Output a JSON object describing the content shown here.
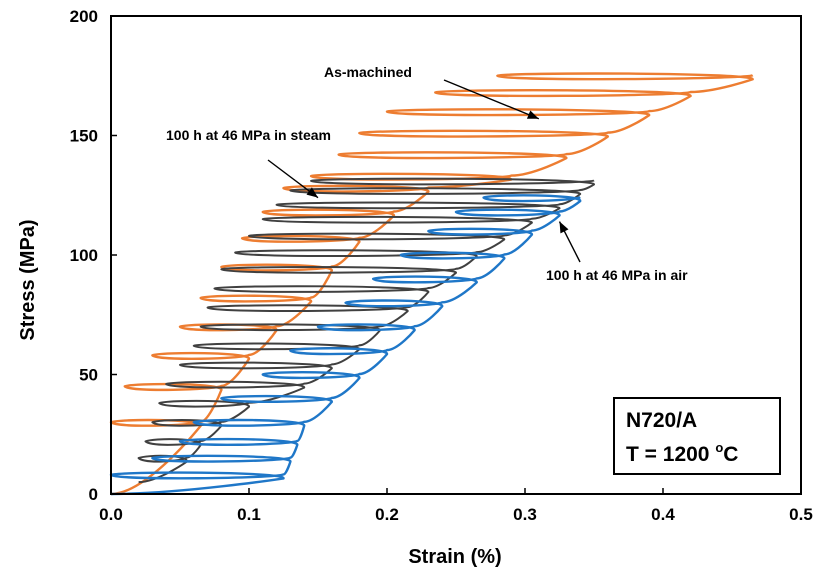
{
  "chart_data": {
    "type": "line",
    "xlabel": "Strain (%)",
    "ylabel": "Stress (MPa)",
    "xlim": [
      0.0,
      0.5
    ],
    "ylim": [
      0,
      200
    ],
    "xticks": [
      "0.0",
      "0.1",
      "0.2",
      "0.3",
      "0.4",
      "0.5"
    ],
    "yticks": [
      "0",
      "50",
      "100",
      "150",
      "200"
    ],
    "grid": false,
    "legend": "none",
    "series": [
      {
        "name": "As-machined",
        "color": "#ED7D31",
        "start": [
          0.0,
          0
        ],
        "cycles": [
          [
            0.0,
            0.065,
            30
          ],
          [
            0.01,
            0.08,
            45
          ],
          [
            0.03,
            0.1,
            58
          ],
          [
            0.05,
            0.12,
            70
          ],
          [
            0.065,
            0.145,
            82
          ],
          [
            0.08,
            0.16,
            95
          ],
          [
            0.095,
            0.18,
            107
          ],
          [
            0.11,
            0.205,
            118
          ],
          [
            0.125,
            0.23,
            128
          ],
          [
            0.145,
            0.29,
            133
          ],
          [
            0.165,
            0.33,
            142
          ],
          [
            0.18,
            0.36,
            151
          ],
          [
            0.2,
            0.39,
            160
          ],
          [
            0.235,
            0.42,
            168
          ],
          [
            0.28,
            0.465,
            175
          ]
        ]
      },
      {
        "name": "100 h at 46 MPa in steam",
        "color": "#404040",
        "start": [
          0.02,
          5
        ],
        "cycles": [
          [
            0.02,
            0.055,
            15
          ],
          [
            0.025,
            0.065,
            22
          ],
          [
            0.03,
            0.08,
            30
          ],
          [
            0.035,
            0.1,
            38
          ],
          [
            0.04,
            0.14,
            46
          ],
          [
            0.05,
            0.16,
            54
          ],
          [
            0.06,
            0.18,
            62
          ],
          [
            0.065,
            0.195,
            70
          ],
          [
            0.07,
            0.215,
            78
          ],
          [
            0.075,
            0.23,
            86
          ],
          [
            0.08,
            0.25,
            94
          ],
          [
            0.09,
            0.265,
            101
          ],
          [
            0.1,
            0.285,
            108
          ],
          [
            0.11,
            0.305,
            115
          ],
          [
            0.12,
            0.325,
            121
          ],
          [
            0.13,
            0.34,
            127
          ],
          [
            0.145,
            0.35,
            131
          ]
        ]
      },
      {
        "name": "100 h at 46 MPa in air",
        "color": "#1F77C8",
        "start": [
          0.0,
          0
        ],
        "cycles": [
          [
            0.0,
            0.125,
            8
          ],
          [
            0.03,
            0.13,
            15
          ],
          [
            0.05,
            0.135,
            22
          ],
          [
            0.06,
            0.14,
            30
          ],
          [
            0.08,
            0.16,
            40
          ],
          [
            0.11,
            0.18,
            50
          ],
          [
            0.13,
            0.2,
            60
          ],
          [
            0.15,
            0.22,
            70
          ],
          [
            0.17,
            0.24,
            80
          ],
          [
            0.19,
            0.265,
            90
          ],
          [
            0.21,
            0.285,
            100
          ],
          [
            0.23,
            0.305,
            110
          ],
          [
            0.25,
            0.325,
            118
          ],
          [
            0.27,
            0.34,
            124
          ]
        ]
      }
    ],
    "annotations": [
      {
        "text": "As-machined",
        "arrow_to": [
          0.31,
          157
        ]
      },
      {
        "text": "100 h at 46 MPa in steam",
        "arrow_to": [
          0.15,
          124
        ]
      },
      {
        "text": "100 h at 46 MPa in air",
        "arrow_to": [
          0.325,
          114
        ]
      }
    ],
    "info_box": {
      "line1": "N720/A",
      "line2_prefix": "T = 1200 ",
      "line2_sup": "o",
      "line2_suffix": "C"
    }
  }
}
